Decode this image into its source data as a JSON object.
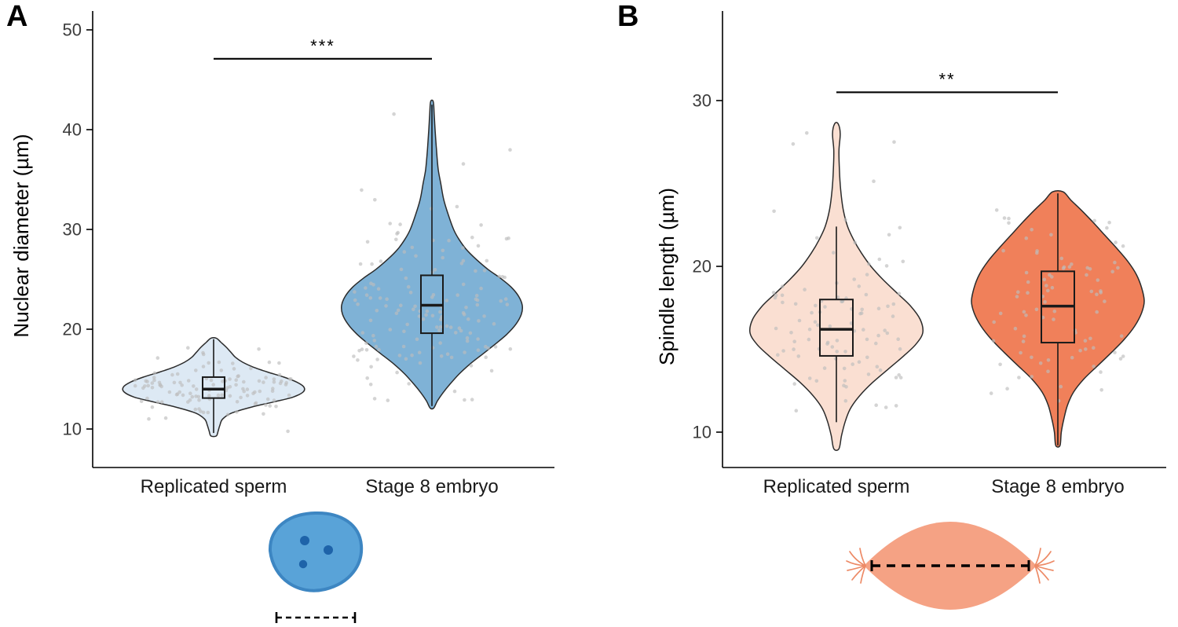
{
  "figure": {
    "background": "#ffffff",
    "axis_color": "#000000",
    "axis_text_color": "#3c3c3c",
    "point_color": "#bdbdbd",
    "box_stroke": "#1a1a1a"
  },
  "chart_data": [
    {
      "type": "violin",
      "panel_label": "A",
      "title": "",
      "ylabel": "Nuclear diameter (µm)",
      "xlabel": "",
      "yticks": [
        10,
        20,
        30,
        40,
        50
      ],
      "ylim": [
        6,
        51.5
      ],
      "grid": false,
      "legend": "none",
      "categories": [
        "Replicated sperm",
        "Stage 8 embryo"
      ],
      "significance": {
        "label": "***",
        "y": 47.1,
        "between": [
          0,
          1
        ]
      },
      "series": [
        {
          "name": "Replicated sperm",
          "fill": "#dde9f4",
          "outline": "#2b2b2b",
          "box": {
            "whisker_low": 9.6,
            "q1": 13.1,
            "median": 14.0,
            "q3": 15.2,
            "whisker_high": 19.0
          },
          "n_points": 120,
          "density": [
            [
              9.3,
              0.03
            ],
            [
              9.8,
              0.05
            ],
            [
              10.4,
              0.07
            ],
            [
              11.0,
              0.1
            ],
            [
              11.6,
              0.2
            ],
            [
              12.2,
              0.42
            ],
            [
              12.7,
              0.66
            ],
            [
              13.2,
              0.88
            ],
            [
              13.7,
              0.99
            ],
            [
              14.2,
              1.0
            ],
            [
              14.7,
              0.92
            ],
            [
              15.2,
              0.78
            ],
            [
              15.7,
              0.6
            ],
            [
              16.2,
              0.44
            ],
            [
              16.7,
              0.32
            ],
            [
              17.2,
              0.24
            ],
            [
              17.7,
              0.19
            ],
            [
              18.2,
              0.14
            ],
            [
              18.7,
              0.08
            ],
            [
              19.1,
              0.03
            ]
          ]
        },
        {
          "name": "Stage 8 embryo",
          "fill": "#7fb2d6",
          "outline": "#2b2b2b",
          "box": {
            "whisker_low": 12.3,
            "q1": 19.6,
            "median": 22.4,
            "q3": 25.4,
            "whisker_high": 42.5
          },
          "n_points": 150,
          "density": [
            [
              12.1,
              0.02
            ],
            [
              12.8,
              0.06
            ],
            [
              13.6,
              0.12
            ],
            [
              14.5,
              0.2
            ],
            [
              15.5,
              0.3
            ],
            [
              16.5,
              0.42
            ],
            [
              17.5,
              0.56
            ],
            [
              18.5,
              0.7
            ],
            [
              19.5,
              0.83
            ],
            [
              20.5,
              0.93
            ],
            [
              21.5,
              0.99
            ],
            [
              22.4,
              1.0
            ],
            [
              23.3,
              0.96
            ],
            [
              24.2,
              0.88
            ],
            [
              25.1,
              0.76
            ],
            [
              26.0,
              0.62
            ],
            [
              27.0,
              0.49
            ],
            [
              28.0,
              0.38
            ],
            [
              29.0,
              0.3
            ],
            [
              30.0,
              0.24
            ],
            [
              31.5,
              0.18
            ],
            [
              33.0,
              0.13
            ],
            [
              34.5,
              0.1
            ],
            [
              36.0,
              0.07
            ],
            [
              38.0,
              0.05
            ],
            [
              40.0,
              0.035
            ],
            [
              41.5,
              0.025
            ],
            [
              42.8,
              0.015
            ]
          ]
        }
      ]
    },
    {
      "type": "violin",
      "panel_label": "B",
      "title": "",
      "ylabel": "Spindle length (µm)",
      "xlabel": "",
      "yticks": [
        10,
        20,
        30
      ],
      "ylim": [
        7.5,
        33
      ],
      "grid": false,
      "legend": "none",
      "categories": [
        "Replicated sperm",
        "Stage 8 embryo"
      ],
      "significance": {
        "label": "**",
        "y": 30.5,
        "between": [
          0,
          1
        ]
      },
      "series": [
        {
          "name": "Replicated sperm",
          "fill": "#fadfd2",
          "outline": "#2b2b2b",
          "box": {
            "whisker_low": 10.6,
            "q1": 14.6,
            "median": 16.2,
            "q3": 18.0,
            "whisker_high": 22.4
          },
          "n_points": 100,
          "density": [
            [
              9.0,
              0.03
            ],
            [
              9.8,
              0.06
            ],
            [
              10.6,
              0.1
            ],
            [
              11.4,
              0.16
            ],
            [
              12.2,
              0.27
            ],
            [
              13.0,
              0.42
            ],
            [
              13.8,
              0.6
            ],
            [
              14.6,
              0.78
            ],
            [
              15.3,
              0.92
            ],
            [
              16.0,
              1.0
            ],
            [
              16.8,
              0.97
            ],
            [
              17.6,
              0.86
            ],
            [
              18.4,
              0.7
            ],
            [
              19.2,
              0.54
            ],
            [
              20.0,
              0.4
            ],
            [
              20.8,
              0.29
            ],
            [
              21.6,
              0.2
            ],
            [
              22.4,
              0.13
            ],
            [
              23.4,
              0.08
            ],
            [
              24.6,
              0.05
            ],
            [
              25.8,
              0.035
            ],
            [
              27.0,
              0.03
            ],
            [
              28.0,
              0.045
            ],
            [
              28.6,
              0.02
            ]
          ]
        },
        {
          "name": "Stage 8 embryo",
          "fill": "#f0805a",
          "outline": "#2b2b2b",
          "box": {
            "whisker_low": 9.2,
            "q1": 15.4,
            "median": 17.6,
            "q3": 19.7,
            "whisker_high": 24.4
          },
          "n_points": 85,
          "density": [
            [
              9.2,
              0.025
            ],
            [
              10.0,
              0.04
            ],
            [
              10.8,
              0.07
            ],
            [
              11.6,
              0.11
            ],
            [
              12.4,
              0.18
            ],
            [
              13.2,
              0.3
            ],
            [
              14.0,
              0.46
            ],
            [
              14.8,
              0.62
            ],
            [
              15.6,
              0.77
            ],
            [
              16.4,
              0.89
            ],
            [
              17.2,
              0.97
            ],
            [
              17.9,
              1.0
            ],
            [
              18.7,
              0.97
            ],
            [
              19.5,
              0.91
            ],
            [
              20.3,
              0.81
            ],
            [
              21.1,
              0.68
            ],
            [
              21.9,
              0.54
            ],
            [
              22.7,
              0.4
            ],
            [
              23.4,
              0.27
            ],
            [
              24.0,
              0.15
            ],
            [
              24.5,
              0.06
            ]
          ]
        }
      ]
    }
  ],
  "cartoons": [
    {
      "name": "nucleus-diagram",
      "panel": "A",
      "body_fill": "#59a3d8",
      "body_stroke": "#3d86c2",
      "dot_color": "#1e63a9",
      "dot_count": 3,
      "measure_line_color": "#000000"
    },
    {
      "name": "spindle-diagram",
      "panel": "B",
      "body_fill": "#f5a284",
      "astral_color": "#ed8a66",
      "measure_line_color": "#000000"
    }
  ]
}
